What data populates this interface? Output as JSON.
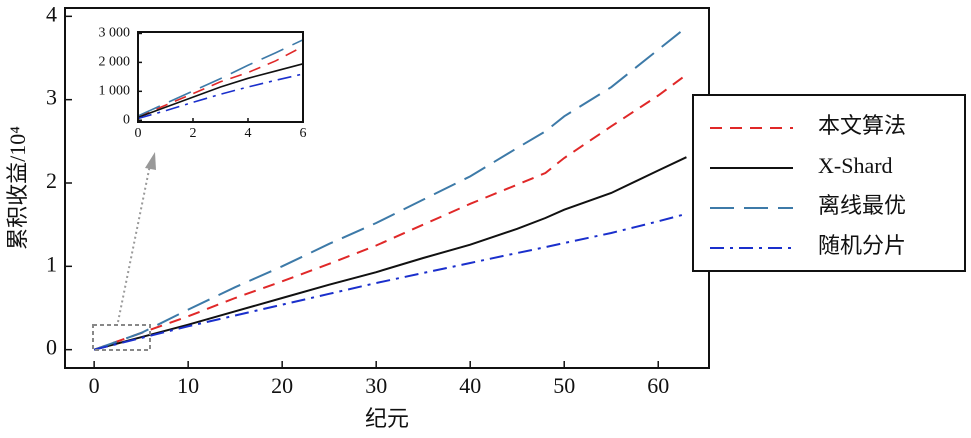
{
  "chart_data": [
    {
      "type": "line",
      "xlabel": "纪元",
      "ylabel": "累积收益/10⁴",
      "xlim": [
        -3.1,
        65.4
      ],
      "ylim": [
        -0.22,
        4.1
      ],
      "xticks": [
        0,
        10,
        20,
        30,
        40,
        50,
        60
      ],
      "yticks": [
        0,
        1,
        2,
        3,
        4
      ],
      "legend": "right",
      "x": [
        0,
        5,
        10,
        15,
        20,
        25,
        30,
        35,
        40,
        45,
        48,
        50,
        55,
        60,
        63
      ],
      "series": [
        {
          "name": "本文算法",
          "color": "#e02828",
          "style": "dashed",
          "values": [
            0,
            0.2,
            0.4,
            0.62,
            0.82,
            1.03,
            1.25,
            1.5,
            1.75,
            1.98,
            2.12,
            2.3,
            2.68,
            3.05,
            3.3
          ]
        },
        {
          "name": "X-Shard",
          "color": "#111111",
          "style": "solid",
          "values": [
            0,
            0.15,
            0.3,
            0.46,
            0.62,
            0.78,
            0.93,
            1.1,
            1.26,
            1.45,
            1.58,
            1.68,
            1.88,
            2.15,
            2.31
          ]
        },
        {
          "name": "离线最优",
          "color": "#3d7aa8",
          "style": "longdash",
          "values": [
            0,
            0.2,
            0.48,
            0.75,
            1.0,
            1.27,
            1.52,
            1.8,
            2.08,
            2.42,
            2.62,
            2.8,
            3.15,
            3.6,
            3.87
          ]
        },
        {
          "name": "随机分片",
          "color": "#1a2fcc",
          "style": "dashdot",
          "values": [
            0,
            0.14,
            0.28,
            0.41,
            0.54,
            0.67,
            0.8,
            0.92,
            1.04,
            1.16,
            1.23,
            1.28,
            1.4,
            1.54,
            1.63
          ]
        }
      ]
    },
    {
      "type": "line",
      "xlim": [
        0,
        6
      ],
      "ylim": [
        -60,
        3050
      ],
      "xticks": [
        0,
        2,
        4,
        6
      ],
      "yticks": [
        0,
        {
          "value": 1000,
          "label": "1 000"
        },
        {
          "value": 2000,
          "label": "2 000"
        },
        {
          "value": 3000,
          "label": "3 000"
        }
      ],
      "x": [
        0,
        1,
        2,
        3,
        4,
        5,
        6
      ],
      "series": [
        {
          "color": "#e02828",
          "style": "dashed",
          "values": [
            120,
            520,
            920,
            1330,
            1650,
            2050,
            2550
          ]
        },
        {
          "color": "#111111",
          "style": "solid",
          "values": [
            100,
            450,
            800,
            1150,
            1450,
            1700,
            1950
          ]
        },
        {
          "color": "#3d7aa8",
          "style": "longdash",
          "values": [
            150,
            580,
            1010,
            1440,
            1900,
            2330,
            2780
          ]
        },
        {
          "color": "#1a2fcc",
          "style": "dashdot",
          "values": [
            60,
            330,
            620,
            900,
            1150,
            1380,
            1600
          ]
        }
      ]
    }
  ]
}
